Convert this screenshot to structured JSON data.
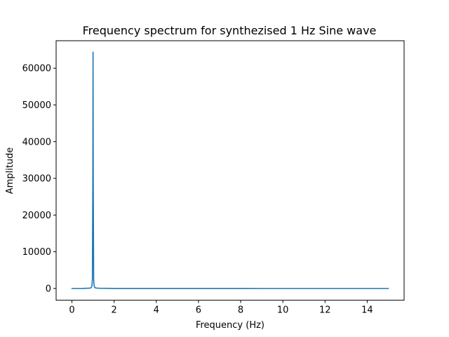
{
  "chart_data": {
    "type": "line",
    "title": "Frequency spectrum for synthezised 1 Hz Sine wave",
    "xlabel": "Frequency (Hz)",
    "ylabel": "Amplitude",
    "xlim": [
      -0.75,
      15.75
    ],
    "ylim": [
      -3200,
      67500
    ],
    "xticks": [
      0,
      2,
      4,
      6,
      8,
      10,
      12,
      14
    ],
    "xtick_labels": [
      "0",
      "2",
      "4",
      "6",
      "8",
      "10",
      "12",
      "14"
    ],
    "yticks": [
      0,
      10000,
      20000,
      30000,
      40000,
      50000,
      60000
    ],
    "ytick_labels": [
      "0",
      "10000",
      "20000",
      "30000",
      "40000",
      "50000",
      "60000"
    ],
    "grid": false,
    "legend": false,
    "series": [
      {
        "color": "#1f77b4",
        "x": [
          0,
          0.5,
          0.85,
          0.9,
          0.93,
          0.95,
          0.97,
          0.99,
          1.0,
          1.01,
          1.03,
          1.05,
          1.07,
          1.1,
          1.15,
          1.3,
          2,
          4,
          6,
          8,
          10,
          12,
          14,
          15
        ],
        "y": [
          0,
          20,
          80,
          200,
          400,
          800,
          2500,
          30000,
          64400,
          30000,
          2500,
          800,
          400,
          200,
          120,
          60,
          20,
          5,
          3,
          2,
          1,
          1,
          1,
          0
        ]
      }
    ]
  }
}
